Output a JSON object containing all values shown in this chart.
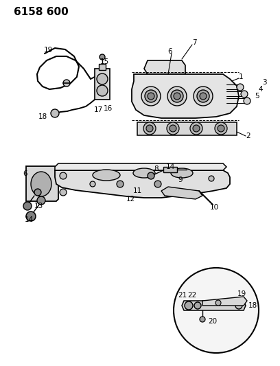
{
  "title": "6158 600",
  "bg_color": "#ffffff",
  "line_color": "#000000",
  "title_fontsize": 11,
  "label_fontsize": 7.5,
  "fig_width": 4.08,
  "fig_height": 5.33,
  "dpi": 100
}
